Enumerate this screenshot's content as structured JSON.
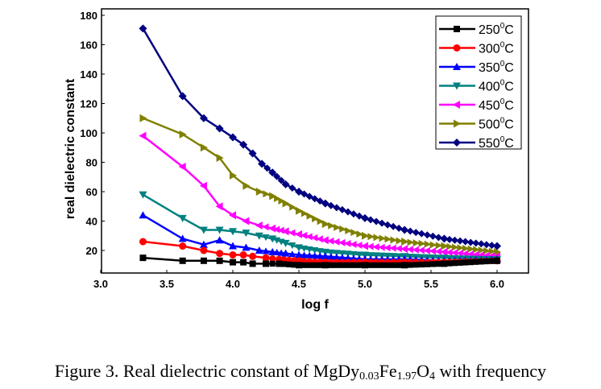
{
  "chart_data": {
    "type": "line",
    "title": "",
    "xlabel": "log f",
    "ylabel": "real dielectric constant",
    "xlim": [
      3.0,
      6.2
    ],
    "ylim": [
      4,
      183
    ],
    "xticks": [
      "3.0",
      "3.5",
      "4.0",
      "4.5",
      "5.0",
      "5.5",
      "6.0"
    ],
    "xtick_values": [
      3.0,
      3.5,
      4.0,
      4.5,
      5.0,
      5.5,
      6.0
    ],
    "yticks": [
      "20",
      "40",
      "60",
      "80",
      "100",
      "120",
      "140",
      "160",
      "180"
    ],
    "ytick_values": [
      20,
      40,
      60,
      80,
      100,
      120,
      140,
      160,
      180
    ],
    "grid": false,
    "legend_position": "top-right",
    "series": [
      {
        "name": "250°C",
        "label_num": "250",
        "color": "#000000",
        "marker": "square",
        "x": [
          3.32,
          3.62,
          3.78,
          3.9,
          4.0,
          4.08,
          4.15,
          4.25,
          4.35,
          4.5,
          4.7,
          5.0,
          5.3,
          5.6,
          6.0
        ],
        "y": [
          15,
          13,
          13,
          13,
          12,
          12,
          11,
          11,
          11,
          10,
          10,
          10,
          10,
          11,
          13
        ]
      },
      {
        "name": "300°C",
        "label_num": "300",
        "color": "#ff0000",
        "marker": "circle",
        "x": [
          3.32,
          3.62,
          3.78,
          3.9,
          4.0,
          4.08,
          4.15,
          4.25,
          4.35,
          4.5,
          4.7,
          5.0,
          5.3,
          5.6,
          6.0
        ],
        "y": [
          26,
          23,
          20,
          18,
          17,
          17,
          16,
          15,
          14,
          13,
          12,
          12,
          12,
          12,
          13
        ]
      },
      {
        "name": "350°C",
        "label_num": "350",
        "color": "#0000ff",
        "marker": "triangle-up",
        "x": [
          3.32,
          3.62,
          3.78,
          3.9,
          4.0,
          4.1,
          4.2,
          4.3,
          4.4,
          4.5,
          4.7,
          5.0,
          5.3,
          5.6,
          6.0
        ],
        "y": [
          44,
          28,
          24,
          27,
          23,
          22,
          20,
          19,
          18,
          17,
          16,
          14,
          14,
          13,
          14
        ]
      },
      {
        "name": "400°C",
        "label_num": "400",
        "color": "#008080",
        "marker": "triangle-down",
        "x": [
          3.32,
          3.62,
          3.78,
          3.9,
          4.0,
          4.1,
          4.2,
          4.3,
          4.4,
          4.5,
          4.7,
          5.0,
          5.3,
          5.6,
          6.0
        ],
        "y": [
          58,
          42,
          34,
          34,
          33,
          32,
          30,
          28,
          25,
          22,
          19,
          17,
          16,
          15,
          14
        ]
      },
      {
        "name": "450°C",
        "label_num": "450",
        "color": "#ff00ff",
        "marker": "triangle-left",
        "x": [
          3.32,
          3.62,
          3.78,
          3.9,
          4.0,
          4.1,
          4.2,
          4.3,
          4.4,
          4.5,
          4.7,
          5.0,
          5.3,
          5.6,
          6.0
        ],
        "y": [
          98,
          77,
          64,
          50,
          44,
          40,
          37,
          35,
          33,
          31,
          27,
          23,
          21,
          19,
          16
        ]
      },
      {
        "name": "500°C",
        "label_num": "500",
        "color": "#808000",
        "marker": "triangle-right",
        "x": [
          3.32,
          3.62,
          3.78,
          3.9,
          4.0,
          4.1,
          4.2,
          4.3,
          4.4,
          4.5,
          4.7,
          5.0,
          5.3,
          5.6,
          6.0
        ],
        "y": [
          110,
          99,
          90,
          83,
          71,
          64,
          60,
          57,
          52,
          47,
          38,
          30,
          26,
          23,
          19
        ]
      },
      {
        "name": "550°C",
        "label_num": "550",
        "color": "#000080",
        "marker": "diamond",
        "x": [
          3.32,
          3.62,
          3.78,
          3.9,
          4.0,
          4.08,
          4.15,
          4.22,
          4.3,
          4.4,
          4.5,
          4.7,
          5.0,
          5.3,
          5.6,
          6.0
        ],
        "y": [
          171,
          125,
          110,
          103,
          97,
          92,
          86,
          79,
          73,
          65,
          60,
          52,
          42,
          34,
          28,
          23
        ]
      }
    ]
  },
  "legend": {
    "degree_symbol": "0",
    "unit": "C"
  },
  "caption": {
    "prefix": "Figure 3. Real dielectric constant of MgDy",
    "sub1": "0.03",
    "mid": "Fe",
    "sub2": "1.97",
    "mid2": "O",
    "sub3": "4",
    "suffix": " with frequency"
  }
}
